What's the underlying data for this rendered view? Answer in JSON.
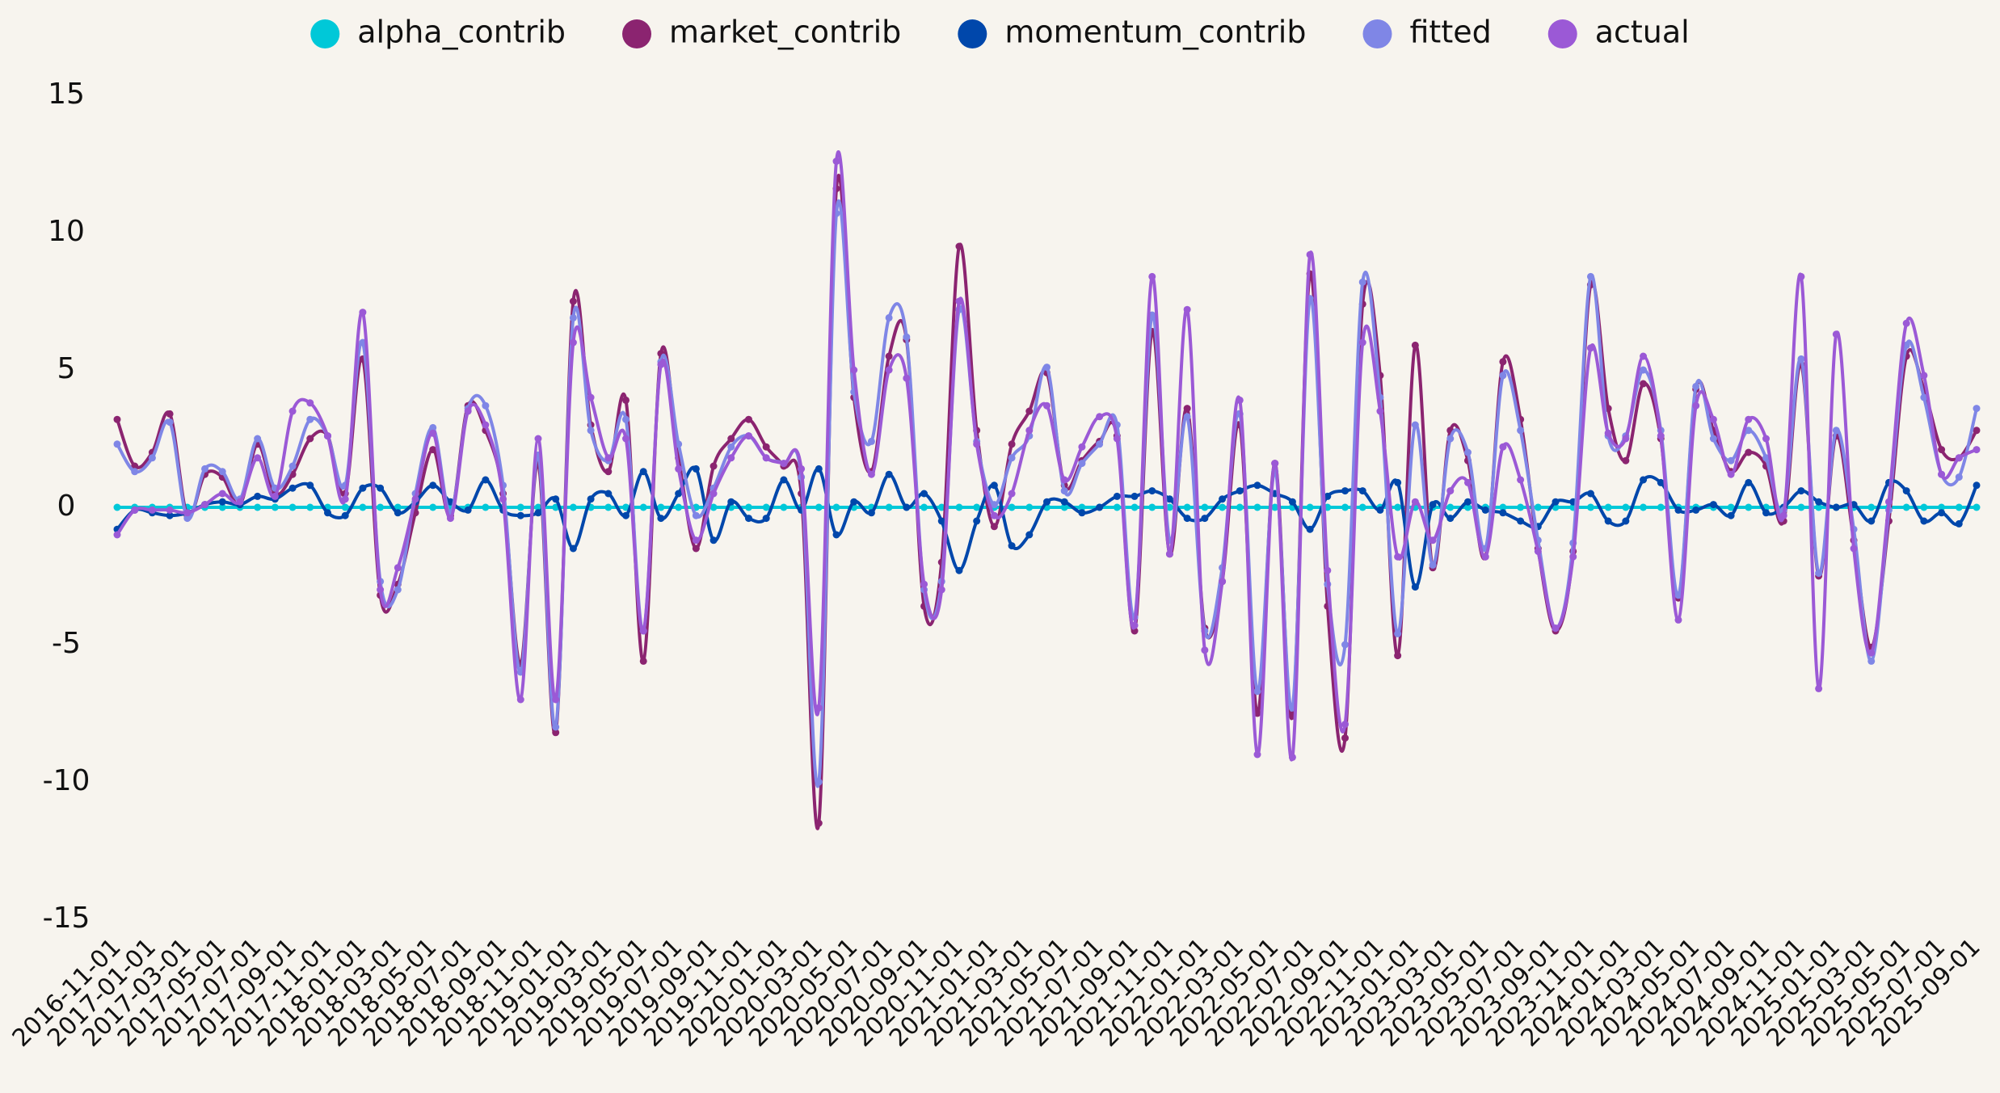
{
  "chart_data": {
    "type": "line",
    "categories": [
      "2016-11-01",
      null,
      "2017-01-01",
      null,
      "2017-03-01",
      null,
      "2017-05-01",
      null,
      "2017-07-01",
      null,
      "2017-09-01",
      null,
      "2017-11-01",
      null,
      "2018-01-01",
      null,
      "2018-03-01",
      null,
      "2018-05-01",
      null,
      "2018-07-01",
      null,
      "2018-09-01",
      null,
      "2018-11-01",
      null,
      "2019-01-01",
      null,
      "2019-03-01",
      null,
      "2019-05-01",
      null,
      "2019-07-01",
      null,
      "2019-09-01",
      null,
      "2019-11-01",
      null,
      "2020-01-01",
      null,
      "2020-03-01",
      null,
      "2020-05-01",
      null,
      "2020-07-01",
      null,
      "2020-09-01",
      null,
      "2020-11-01",
      null,
      "2021-01-01",
      null,
      "2021-03-01",
      null,
      "2021-05-01",
      null,
      "2021-07-01",
      null,
      "2021-09-01",
      null,
      "2021-11-01",
      null,
      "2022-01-01",
      null,
      "2022-03-01",
      null,
      "2022-05-01",
      null,
      "2022-07-01",
      null,
      "2022-09-01",
      null,
      "2022-11-01",
      null,
      "2023-01-01",
      null,
      "2023-03-01",
      null,
      "2023-05-01",
      null,
      "2023-07-01",
      null,
      "2023-09-01",
      null,
      "2023-11-01",
      null,
      "2024-01-01",
      null,
      "2024-03-01",
      null,
      "2024-05-01",
      null,
      "2024-07-01",
      null,
      "2024-09-01",
      null,
      "2024-11-01",
      null,
      "2025-01-01",
      null,
      "2025-03-01",
      null,
      "2025-05-01",
      null,
      "2025-07-01",
      null,
      "2025-09-01"
    ],
    "series": [
      {
        "name": "alpha_contrib",
        "color": "#00c8d8",
        "values": [
          0,
          0,
          0,
          0,
          0,
          0,
          0,
          0,
          0,
          0,
          0,
          0,
          0,
          0,
          0,
          0,
          0,
          0,
          0,
          0,
          0,
          0,
          0,
          0,
          0,
          0,
          0,
          0,
          0,
          0,
          0,
          0,
          0,
          0,
          0,
          0,
          0,
          0,
          0,
          0,
          0,
          0,
          0,
          0,
          0,
          0,
          0,
          0,
          0,
          0,
          0,
          0,
          0,
          0,
          0,
          0,
          0,
          0,
          0,
          0,
          0,
          0,
          0,
          0,
          0,
          0,
          0,
          0,
          0,
          0,
          0,
          0,
          0,
          0,
          0,
          0,
          0,
          0,
          0,
          0,
          0,
          0,
          0,
          0,
          0,
          0,
          0,
          0,
          0,
          0,
          0,
          0,
          0,
          0,
          0,
          0,
          0,
          0,
          0,
          0,
          0,
          0,
          0,
          0,
          0,
          0,
          0
        ]
      },
      {
        "name": "market_contrib",
        "color": "#8b2470",
        "values": [
          3.2,
          1.5,
          2.0,
          3.4,
          -0.3,
          1.2,
          1.1,
          0.1,
          2.3,
          0.5,
          1.2,
          2.5,
          2.6,
          0.5,
          5.4,
          -3.2,
          -2.8,
          -0.2,
          2.1,
          -0.3,
          3.7,
          2.8,
          0.5,
          -5.7,
          1.6,
          -8.2,
          7.5,
          3.0,
          1.3,
          3.9,
          -5.6,
          5.6,
          1.8,
          -1.5,
          1.5,
          2.5,
          3.2,
          2.2,
          1.5,
          0.5,
          -11.5,
          11.6,
          4.0,
          1.3,
          5.5,
          6.1,
          -3.6,
          -2.0,
          9.5,
          2.8,
          -0.7,
          2.3,
          3.5,
          4.9,
          0.8,
          1.7,
          2.4,
          2.6,
          -4.5,
          6.4,
          -1.7,
          3.6,
          -4.4,
          -2.7,
          3.0,
          -7.5,
          1.6,
          -7.6,
          8.5,
          -3.6,
          -8.4,
          7.4,
          4.8,
          -5.4,
          5.9,
          -2.2,
          2.8,
          1.7,
          -1.8,
          5.3,
          3.2,
          -1.5,
          -4.5,
          -1.6,
          8.1,
          3.6,
          1.7,
          4.5,
          2.5,
          -3.3,
          4.3,
          2.8,
          1.3,
          2.0,
          1.5,
          -0.5,
          5.2,
          -2.5,
          2.6,
          -1.2,
          -5.1,
          -0.5,
          5.5,
          4.3,
          2.1,
          1.8,
          2.8
        ]
      },
      {
        "name": "momentum_contrib",
        "color": "#0047ab",
        "values": [
          -0.8,
          -0.1,
          -0.2,
          -0.3,
          -0.2,
          0.1,
          0.2,
          0.1,
          0.4,
          0.3,
          0.7,
          0.8,
          -0.2,
          -0.3,
          0.7,
          0.7,
          -0.2,
          0.2,
          0.8,
          0.2,
          -0.1,
          1.0,
          -0.1,
          -0.3,
          -0.2,
          0.3,
          -1.5,
          0.3,
          0.5,
          -0.3,
          1.3,
          -0.4,
          0.5,
          1.4,
          -1.2,
          0.2,
          -0.4,
          -0.4,
          1.0,
          -0.1,
          1.4,
          -1.0,
          0.2,
          -0.2,
          1.2,
          0.0,
          0.5,
          -0.5,
          -2.3,
          -0.5,
          0.8,
          -1.4,
          -1.0,
          0.2,
          0.2,
          -0.2,
          0.0,
          0.4,
          0.4,
          0.6,
          0.3,
          -0.4,
          -0.4,
          0.3,
          0.6,
          0.8,
          0.5,
          0.2,
          -0.8,
          0.4,
          0.6,
          0.6,
          -0.1,
          0.9,
          -2.9,
          0.1,
          -0.4,
          0.2,
          -0.1,
          -0.2,
          -0.5,
          -0.7,
          0.2,
          0.2,
          0.5,
          -0.5,
          -0.5,
          1.0,
          0.9,
          -0.1,
          -0.1,
          0.1,
          -0.3,
          0.9,
          -0.2,
          0.0,
          0.6,
          0.2,
          0.0,
          0.1,
          -0.5,
          0.9,
          0.6,
          -0.5,
          -0.2,
          -0.6,
          0.8
        ]
      },
      {
        "name": "fitted",
        "color": "#7f86e6",
        "values": [
          2.3,
          1.3,
          1.8,
          3.1,
          -0.4,
          1.4,
          1.3,
          0.3,
          2.5,
          0.7,
          1.5,
          3.2,
          2.6,
          0.8,
          6.0,
          -2.7,
          -3.0,
          0.5,
          2.9,
          -0.2,
          3.6,
          3.7,
          0.8,
          -6.0,
          1.9,
          -8.0,
          6.9,
          2.8,
          1.7,
          3.2,
          -4.5,
          5.3,
          2.3,
          -0.3,
          0.7,
          2.2,
          2.6,
          1.8,
          1.6,
          1.1,
          -10.0,
          10.7,
          4.2,
          2.4,
          6.9,
          6.2,
          -3.0,
          -2.7,
          7.2,
          2.4,
          0.1,
          1.8,
          2.6,
          5.1,
          0.6,
          1.6,
          2.3,
          3.0,
          -4.0,
          7.0,
          -1.2,
          3.3,
          -4.5,
          -2.2,
          3.4,
          -6.7,
          1.3,
          -7.3,
          7.6,
          -2.8,
          -5.0,
          8.2,
          4.0,
          -4.6,
          3.0,
          -2.1,
          2.5,
          2.0,
          -1.5,
          4.8,
          2.8,
          -1.2,
          -4.4,
          -1.3,
          8.4,
          2.6,
          2.6,
          5.0,
          2.8,
          -3.2,
          4.4,
          2.5,
          1.7,
          2.8,
          1.8,
          -0.1,
          5.4,
          -2.4,
          2.8,
          -0.8,
          -5.6,
          -0.1,
          5.9,
          4.0,
          1.2,
          1.1,
          3.6
        ]
      },
      {
        "name": "actual",
        "color": "#9b59d6",
        "values": [
          -1.0,
          -0.1,
          -0.1,
          -0.1,
          -0.2,
          0.1,
          0.5,
          0.2,
          1.8,
          0.4,
          3.5,
          3.8,
          2.6,
          0.3,
          7.1,
          -3.0,
          -2.2,
          0.3,
          2.7,
          -0.4,
          3.5,
          3.0,
          0.3,
          -7.0,
          2.5,
          -7.0,
          6.0,
          4.0,
          1.8,
          2.5,
          -4.5,
          5.2,
          1.4,
          -1.2,
          0.5,
          1.8,
          2.6,
          1.8,
          1.6,
          1.4,
          -7.3,
          12.6,
          5.0,
          1.2,
          5.0,
          4.7,
          -2.8,
          -3.0,
          7.5,
          2.3,
          -0.3,
          0.5,
          2.8,
          3.7,
          1.0,
          2.2,
          3.3,
          2.5,
          -4.3,
          8.4,
          -1.7,
          7.2,
          -5.2,
          -2.7,
          3.9,
          -9.0,
          1.6,
          -9.1,
          9.2,
          -2.3,
          -7.9,
          6.0,
          3.5,
          -1.8,
          0.2,
          -1.2,
          0.6,
          0.9,
          -1.8,
          2.2,
          1.0,
          -1.6,
          -4.4,
          -1.8,
          5.8,
          2.7,
          2.5,
          5.5,
          2.6,
          -4.1,
          3.7,
          3.2,
          1.2,
          3.2,
          2.5,
          -0.3,
          8.4,
          -6.6,
          6.3,
          -1.5,
          -5.3,
          0.2,
          6.7,
          4.8,
          1.2,
          1.8,
          2.1
        ]
      }
    ],
    "ylim": [
      -15,
      15
    ],
    "yticks": [
      -15,
      -10,
      -5,
      0,
      5,
      10,
      15
    ],
    "legend": "top",
    "grid": false
  }
}
